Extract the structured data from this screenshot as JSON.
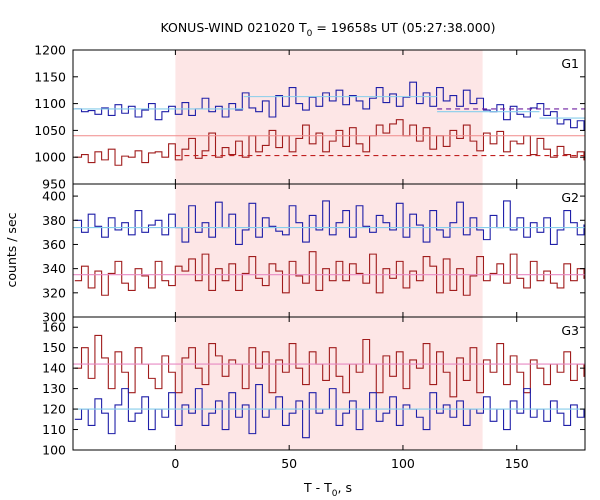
{
  "figure": {
    "title": "KONUS-WIND 021020 T",
    "title_sub": "0",
    "title_rest": " = 19658s UT (05:27:38.000)",
    "ylabel": "counts / sec",
    "xlabel": "T - T",
    "xlabel_sub": "0",
    "xlabel_rest": ", s"
  },
  "chart_data": {
    "type": "line",
    "x_range": [
      -45,
      180
    ],
    "x_ticks": [
      0,
      50,
      100,
      150
    ],
    "shaded_interval": [
      0,
      135
    ],
    "shade_color": "#fde6e6",
    "bin_width": 2.944,
    "bin_start": -44.2,
    "panels": [
      {
        "label": "G1",
        "ylim": [
          950,
          1200
        ],
        "yticks": [
          950,
          1000,
          1050,
          1100,
          1150,
          1200
        ],
        "series": [
          {
            "color": "#1f1fa8",
            "values": [
              1090,
              1085,
              1087,
              1080,
              1092,
              1078,
              1098,
              1082,
              1095,
              1075,
              1088,
              1100,
              1070,
              1085,
              1095,
              1080,
              1102,
              1078,
              1090,
              1110,
              1085,
              1095,
              1075,
              1100,
              1088,
              1120,
              1092,
              1085,
              1105,
              1075,
              1115,
              1095,
              1130,
              1100,
              1088,
              1112,
              1095,
              1120,
              1105,
              1125,
              1098,
              1115,
              1105,
              1090,
              1110,
              1130,
              1102,
              1118,
              1095,
              1112,
              1140,
              1100,
              1120,
              1095,
              1130,
              1105,
              1115,
              1095,
              1125,
              1100,
              1110,
              1088,
              1085,
              1098,
              1070,
              1095,
              1080,
              1075,
              1092,
              1100,
              1078,
              1085,
              1062,
              1070,
              1055,
              1068,
              1050,
              1075,
              1080,
              1070
            ]
          },
          {
            "color": "#a01c1c",
            "values": [
              1000,
              1005,
              990,
              1010,
              995,
              1015,
              985,
              1002,
              1000,
              1012,
              990,
              1008,
              1010,
              1000,
              1025,
              995,
              1015,
              1035,
              998,
              1012,
              1045,
              1000,
              1018,
              1005,
              1030,
              1000,
              1040,
              1010,
              1022,
              1050,
              1018,
              1040,
              1010,
              1035,
              1060,
              1025,
              1045,
              1010,
              1030,
              1050,
              1020,
              1055,
              1025,
              1010,
              1040,
              1060,
              1045,
              1062,
              1070,
              1040,
              1060,
              1030,
              1055,
              1015,
              1040,
              1020,
              1050,
              1035,
              1060,
              1030,
              1012,
              1045,
              1025,
              1048,
              1010,
              1030,
              1025,
              1040,
              1005,
              1035,
              1015,
              1000,
              1020,
              1005,
              1000,
              1010,
              995,
              1000,
              1012,
              1005
            ]
          }
        ],
        "fits": [
          {
            "color": "#87ceeb",
            "style": "solid",
            "segments": [
              [
                -45,
                30,
                1090
              ],
              [
                30,
                115,
                1113
              ],
              [
                115,
                160,
                1085
              ],
              [
                160,
                180,
                1073
              ]
            ]
          },
          {
            "color": "#6d1fa0",
            "style": "dashed",
            "segments": [
              [
                115,
                180,
                1090
              ]
            ]
          },
          {
            "color": "#f08a8a",
            "style": "solid",
            "segments": [
              [
                -45,
                180,
                1040
              ]
            ]
          },
          {
            "color": "#c02020",
            "style": "dashed",
            "segments": [
              [
                0,
                180,
                1003
              ]
            ]
          }
        ]
      },
      {
        "label": "G2",
        "ylim": [
          300,
          410
        ],
        "yticks": [
          300,
          320,
          340,
          360,
          380,
          400
        ],
        "series": [
          {
            "color": "#1f1fa8",
            "values": [
              380,
              370,
              385,
              375,
              366,
              382,
              372,
              378,
              368,
              388,
              370,
              376,
              380,
              368,
              385,
              374,
              362,
              392,
              370,
              378,
              366,
              395,
              374,
              385,
              360,
              372,
              394,
              366,
              382,
              375,
              371,
              368,
              392,
              378,
              362,
              384,
              372,
              396,
              368,
              378,
              388,
              366,
              392,
              375,
              370,
              384,
              378,
              372,
              394,
              366,
              385,
              376,
              362,
              388,
              372,
              366,
              378,
              395,
              368,
              382,
              372,
              364,
              384,
              374,
              396,
              372,
              382,
              366,
              378,
              370,
              382,
              360,
              372,
              388,
              378,
              368,
              376,
              372,
              384,
              378
            ]
          },
          {
            "color": "#a01c1c",
            "values": [
              330,
              342,
              324,
              338,
              318,
              336,
              346,
              328,
              322,
              340,
              334,
              324,
              346,
              330,
              326,
              342,
              338,
              348,
              330,
              352,
              322,
              340,
              330,
              344,
              322,
              336,
              350,
              332,
              326,
              344,
              338,
              320,
              346,
              334,
              328,
              354,
              322,
              340,
              330,
              346,
              330,
              344,
              336,
              328,
              352,
              320,
              340,
              332,
              346,
              324,
              338,
              330,
              350,
              342,
              320,
              348,
              322,
              340,
              318,
              334,
              350,
              330,
              336,
              344,
              328,
              352,
              332,
              324,
              346,
              330,
              338,
              328,
              324,
              344,
              330,
              340,
              332,
              328,
              338,
              346
            ]
          }
        ],
        "fits": [
          {
            "color": "#87ceeb",
            "style": "solid",
            "segments": [
              [
                -45,
                180,
                374
              ]
            ]
          },
          {
            "color": "#e78ac3",
            "style": "solid",
            "segments": [
              [
                -45,
                180,
                335
              ]
            ]
          }
        ]
      },
      {
        "label": "G3",
        "ylim": [
          100,
          165
        ],
        "yticks": [
          100,
          110,
          120,
          130,
          140,
          150,
          160
        ],
        "series": [
          {
            "color": "#a01c1c",
            "values": [
              140,
              150,
              135,
              156,
              145,
              130,
              148,
              138,
              128,
              150,
              142,
              135,
              130,
              146,
              138,
              128,
              145,
              150,
              140,
              132,
              152,
              146,
              136,
              144,
              142,
              130,
              150,
              140,
              148,
              128,
              144,
              138,
              152,
              140,
              132,
              148,
              142,
              134,
              150,
              136,
              128,
              142,
              138,
              154,
              142,
              128,
              146,
              136,
              148,
              130,
              144,
              140,
              152,
              132,
              148,
              138,
              126,
              145,
              134,
              150,
              128,
              144,
              138,
              152,
              132,
              146,
              138,
              128,
              144,
              140,
              132,
              142,
              138,
              148,
              134,
              142,
              136,
              144,
              140,
              146
            ]
          },
          {
            "color": "#1f1fa8",
            "values": [
              115,
              120,
              112,
              125,
              118,
              108,
              122,
              130,
              114,
              118,
              126,
              110,
              120,
              116,
              128,
              112,
              122,
              118,
              130,
              112,
              118,
              124,
              110,
              128,
              116,
              122,
              108,
              132,
              116,
              120,
              126,
              112,
              118,
              124,
              106,
              128,
              118,
              120,
              130,
              112,
              118,
              124,
              110,
              120,
              128,
              114,
              118,
              126,
              112,
              122,
              120,
              116,
              110,
              128,
              118,
              122,
              116,
              124,
              112,
              120,
              118,
              126,
              114,
              120,
              110,
              124,
              118,
              130,
              116,
              120,
              114,
              124,
              118,
              112,
              122,
              116,
              120,
              112,
              124,
              118
            ]
          }
        ],
        "fits": [
          {
            "color": "#e78ac3",
            "style": "solid",
            "segments": [
              [
                -45,
                180,
                142
              ]
            ]
          },
          {
            "color": "#87ceeb",
            "style": "solid",
            "segments": [
              [
                -45,
                180,
                120
              ]
            ]
          }
        ]
      }
    ]
  }
}
